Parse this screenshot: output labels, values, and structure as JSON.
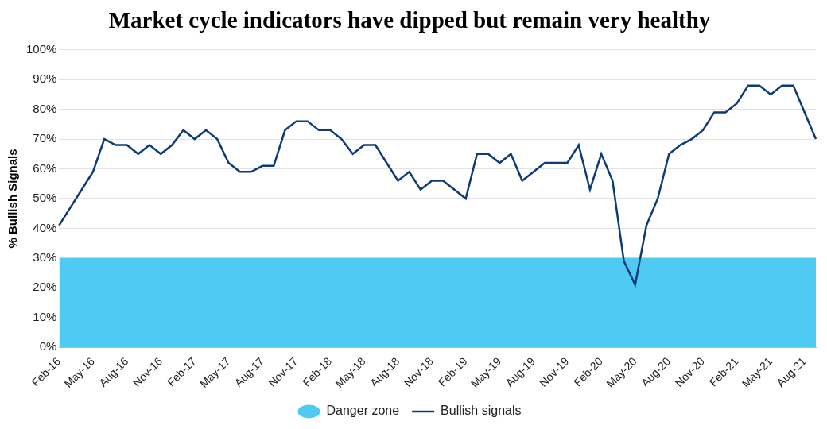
{
  "chart_data": {
    "type": "line",
    "title": "Market cycle indicators have dipped but remain very healthy",
    "y_label": "% Bullish Signals",
    "categories": [
      "Feb-16",
      null,
      null,
      "May-16",
      null,
      null,
      "Aug-16",
      null,
      null,
      "Nov-16",
      null,
      null,
      "Feb-17",
      null,
      null,
      "May-17",
      null,
      null,
      "Aug-17",
      null,
      null,
      "Nov-17",
      null,
      null,
      "Feb-18",
      null,
      null,
      "May-18",
      null,
      null,
      "Aug-18",
      null,
      null,
      "Nov-18",
      null,
      null,
      "Feb-19",
      null,
      null,
      "May-19",
      null,
      null,
      "Aug-19",
      null,
      null,
      "Nov-19",
      null,
      null,
      "Feb-20",
      null,
      null,
      "May-20",
      null,
      null,
      "Aug-20",
      null,
      null,
      "Nov-20",
      null,
      null,
      "Feb-21",
      null,
      null,
      "May-21",
      null,
      null,
      "Aug-21",
      null
    ],
    "series": [
      {
        "name": "Bullish signals",
        "color": "#0d3b78",
        "values": [
          41,
          47,
          53,
          59,
          70,
          68,
          68,
          65,
          68,
          65,
          68,
          73,
          70,
          73,
          70,
          62,
          59,
          59,
          61,
          61,
          73,
          76,
          76,
          73,
          73,
          70,
          65,
          68,
          68,
          62,
          56,
          59,
          53,
          56,
          56,
          53,
          50,
          65,
          65,
          62,
          65,
          56,
          59,
          62,
          62,
          62,
          68,
          53,
          65,
          56,
          29,
          21,
          41,
          50,
          65,
          68,
          70,
          73,
          79,
          79,
          82,
          88,
          88,
          85,
          88,
          88,
          79,
          70
        ]
      }
    ],
    "bands": [
      {
        "name": "Danger zone",
        "color": "#4fcbf3",
        "range": [
          0,
          30
        ]
      }
    ],
    "ylim": [
      0,
      100
    ],
    "yticks": [
      {
        "value": 0,
        "label": "0%"
      },
      {
        "value": 10,
        "label": "10%"
      },
      {
        "value": 20,
        "label": "20%"
      },
      {
        "value": 30,
        "label": "30%"
      },
      {
        "value": 40,
        "label": "40%"
      },
      {
        "value": 50,
        "label": "50%"
      },
      {
        "value": 60,
        "label": "60%"
      },
      {
        "value": 70,
        "label": "70%"
      },
      {
        "value": 80,
        "label": "80%"
      },
      {
        "value": 90,
        "label": "90%"
      },
      {
        "value": 100,
        "label": "100%"
      }
    ],
    "grid": true,
    "legend": "bottom"
  }
}
